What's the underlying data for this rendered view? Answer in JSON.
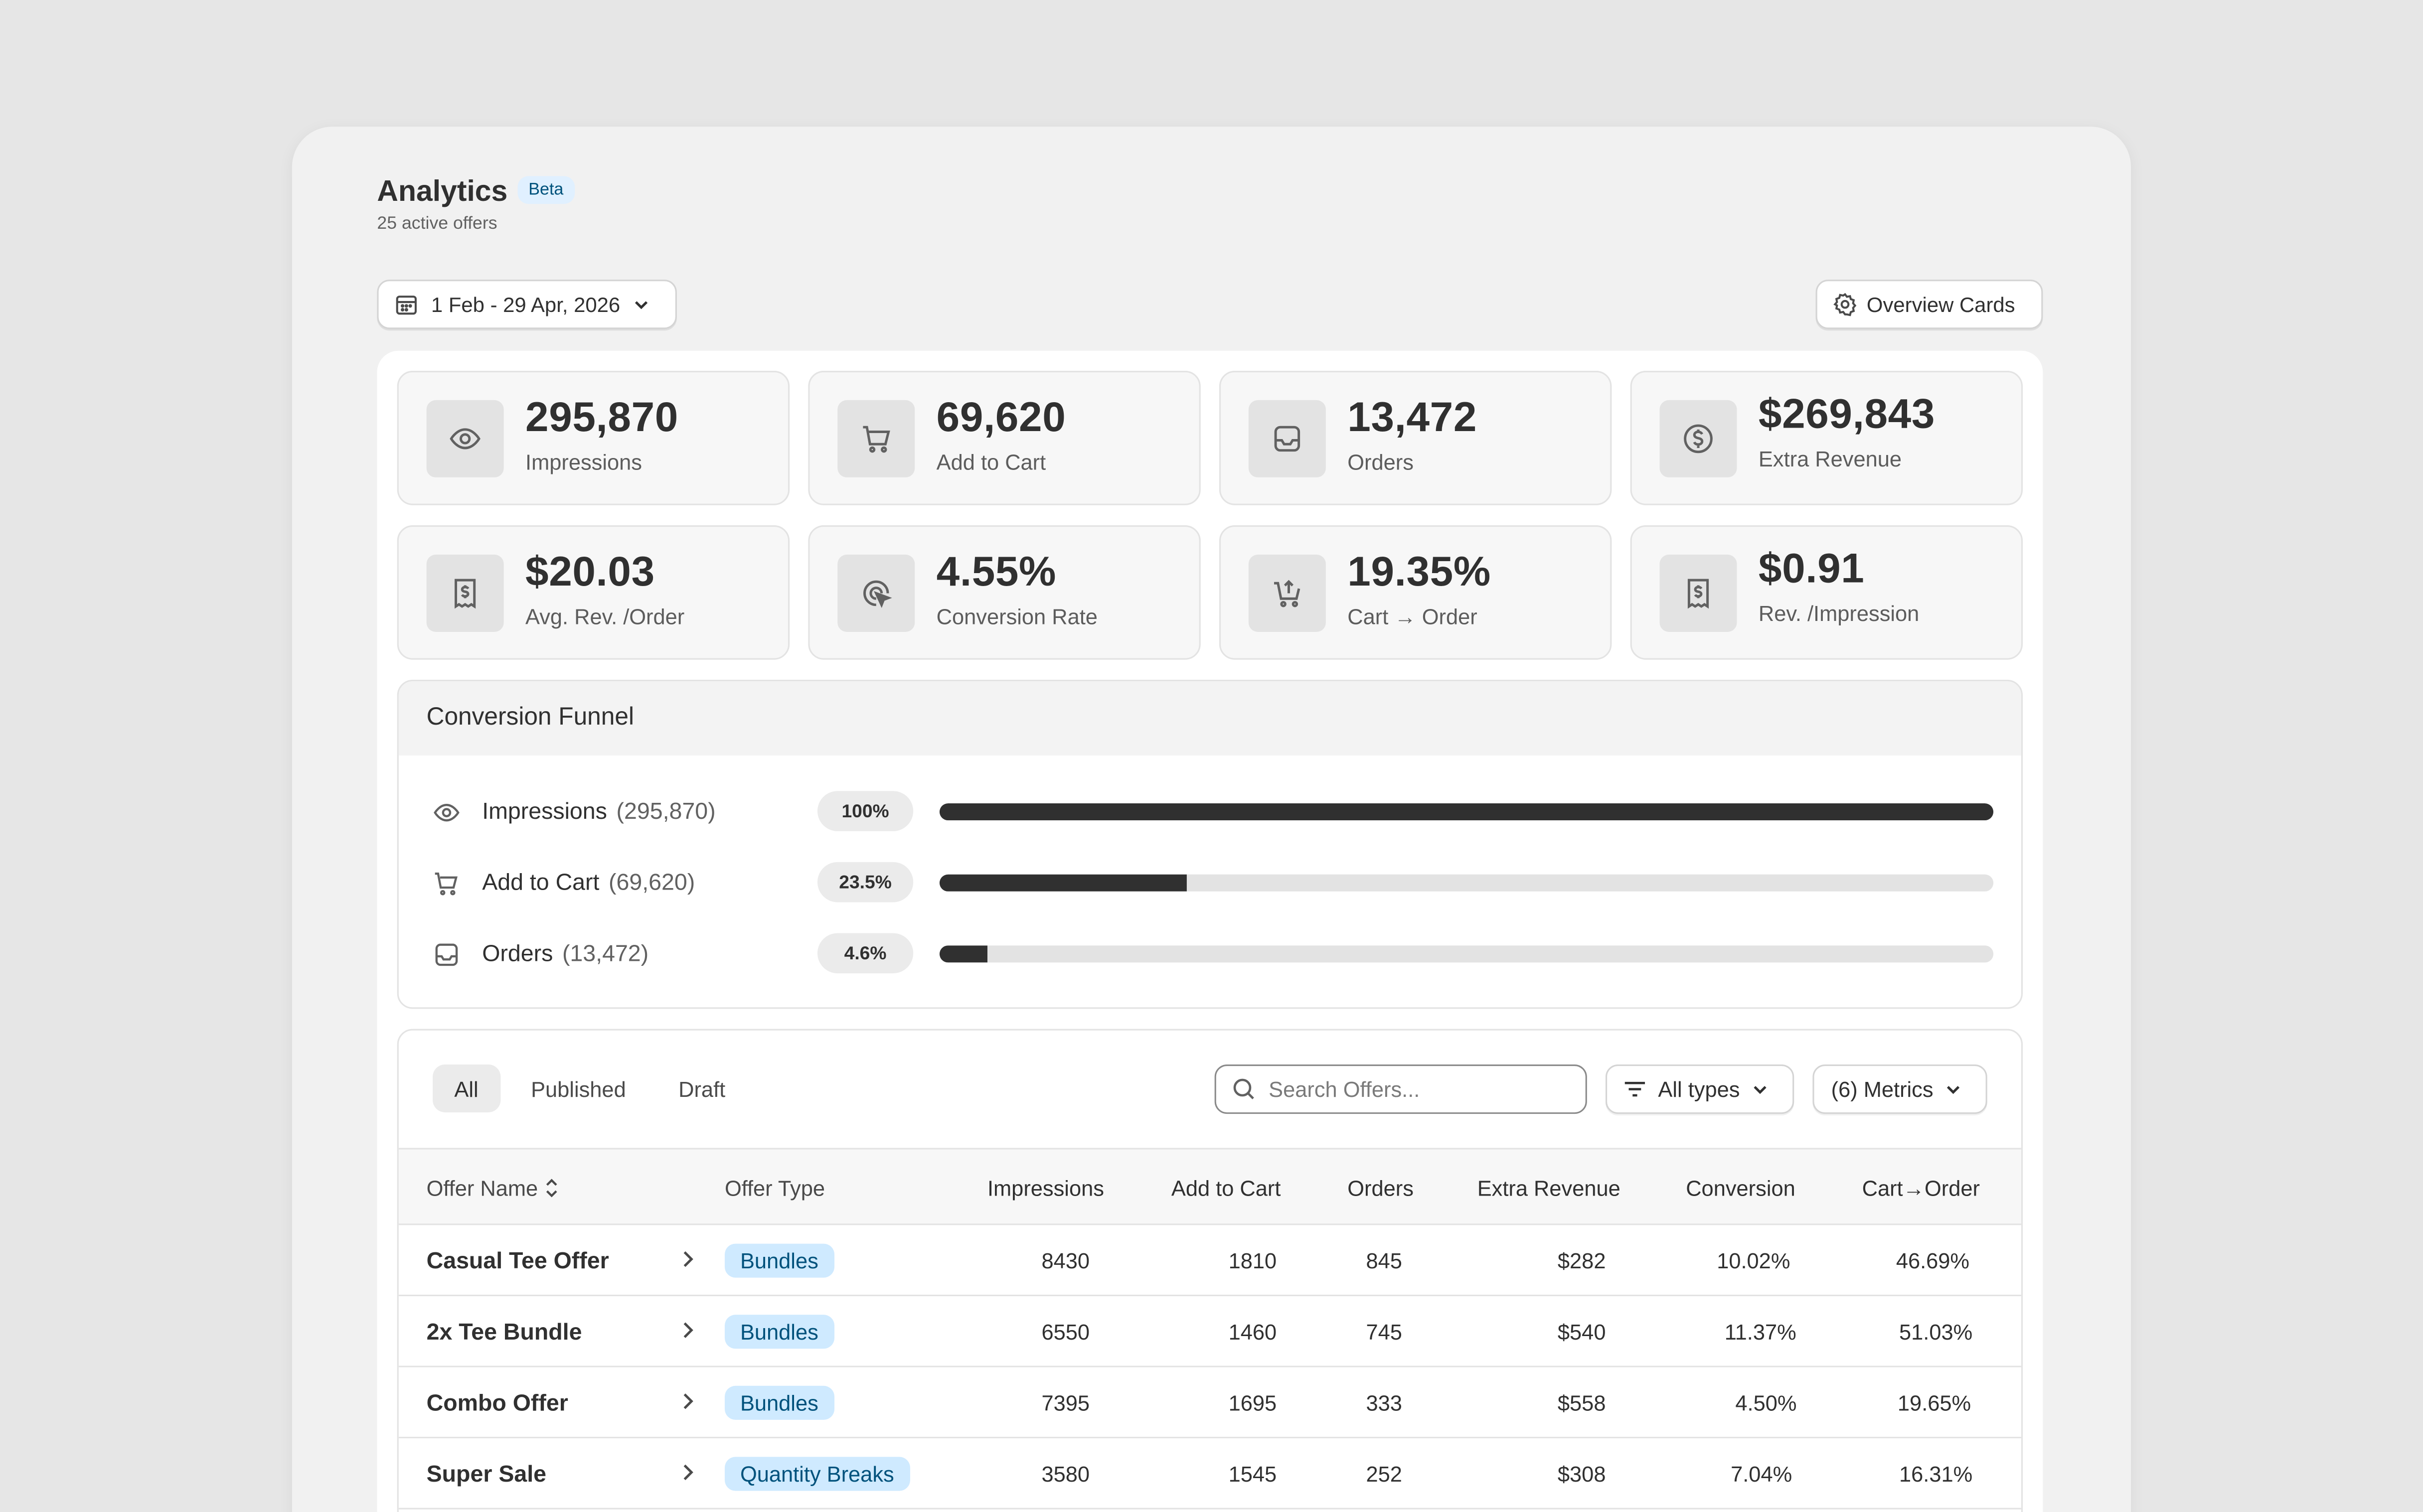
{
  "header": {
    "title": "Analytics",
    "badge": "Beta",
    "subtitle": "25 active offers",
    "date_range": "1 Feb - 29 Apr, 2026",
    "overview_button": "Overview Cards"
  },
  "cards": [
    {
      "icon": "eye-icon",
      "value": "295,870",
      "label": "Impressions"
    },
    {
      "icon": "cart-icon",
      "value": "69,620",
      "label": "Add to Cart"
    },
    {
      "icon": "inbox-icon",
      "value": "13,472",
      "label": "Orders"
    },
    {
      "icon": "dollar-circle-icon",
      "value": "$269,843",
      "label": "Extra Revenue"
    },
    {
      "icon": "receipt-icon",
      "value": "$20.03",
      "label": "Avg. Rev. /Order"
    },
    {
      "icon": "cursor-click-icon",
      "value": "4.55%",
      "label": "Conversion Rate"
    },
    {
      "icon": "cart-up-icon",
      "value": "19.35%",
      "label": "Cart → Order"
    },
    {
      "icon": "receipt-icon",
      "value": "$0.91",
      "label": "Rev. /Impression"
    }
  ],
  "funnel": {
    "title": "Conversion Funnel",
    "rows": [
      {
        "icon": "eye-icon",
        "name": "Impressions",
        "count": "(295,870)",
        "pct_label": "100%",
        "fraction": 1.0
      },
      {
        "icon": "cart-icon",
        "name": "Add to Cart",
        "count": "(69,620)",
        "pct_label": "23.5%",
        "fraction": 0.235
      },
      {
        "icon": "inbox-icon",
        "name": "Orders",
        "count": "(13,472)",
        "pct_label": "4.6%",
        "fraction": 0.046
      }
    ]
  },
  "table": {
    "tabs": [
      "All",
      "Published",
      "Draft"
    ],
    "active_tab": "All",
    "search_placeholder": "Search Offers...",
    "type_filter": "All types",
    "metrics_button": "(6) Metrics",
    "columns": [
      "Offer Name",
      "Offer Type",
      "Impressions",
      "Add to Cart",
      "Orders",
      "Extra Revenue",
      "Conversion",
      "Cart→Order"
    ],
    "rows": [
      {
        "name": "Casual Tee Offer",
        "type": "Bundles",
        "impressions": "8430",
        "add_to_cart": "1810",
        "orders": "845",
        "revenue": "$282",
        "conversion": "10.02%",
        "cart_order": "46.69%"
      },
      {
        "name": "2x Tee Bundle",
        "type": "Bundles",
        "impressions": "6550",
        "add_to_cart": "1460",
        "orders": "745",
        "revenue": "$540",
        "conversion": "11.37%",
        "cart_order": "51.03%"
      },
      {
        "name": "Combo Offer",
        "type": "Bundles",
        "impressions": "7395",
        "add_to_cart": "1695",
        "orders": "333",
        "revenue": "$558",
        "conversion": "4.50%",
        "cart_order": "19.65%"
      },
      {
        "name": "Super Sale",
        "type": "Quantity Breaks",
        "impressions": "3580",
        "add_to_cart": "1545",
        "orders": "252",
        "revenue": "$308",
        "conversion": "7.04%",
        "cart_order": "16.31%"
      }
    ]
  },
  "colors": {
    "page_bg": "#e6e6e6",
    "window_bg": "#f1f1f1",
    "bar_fill": "#303030",
    "badge_bg": "#cfeaff",
    "badge_text": "#00527c"
  }
}
